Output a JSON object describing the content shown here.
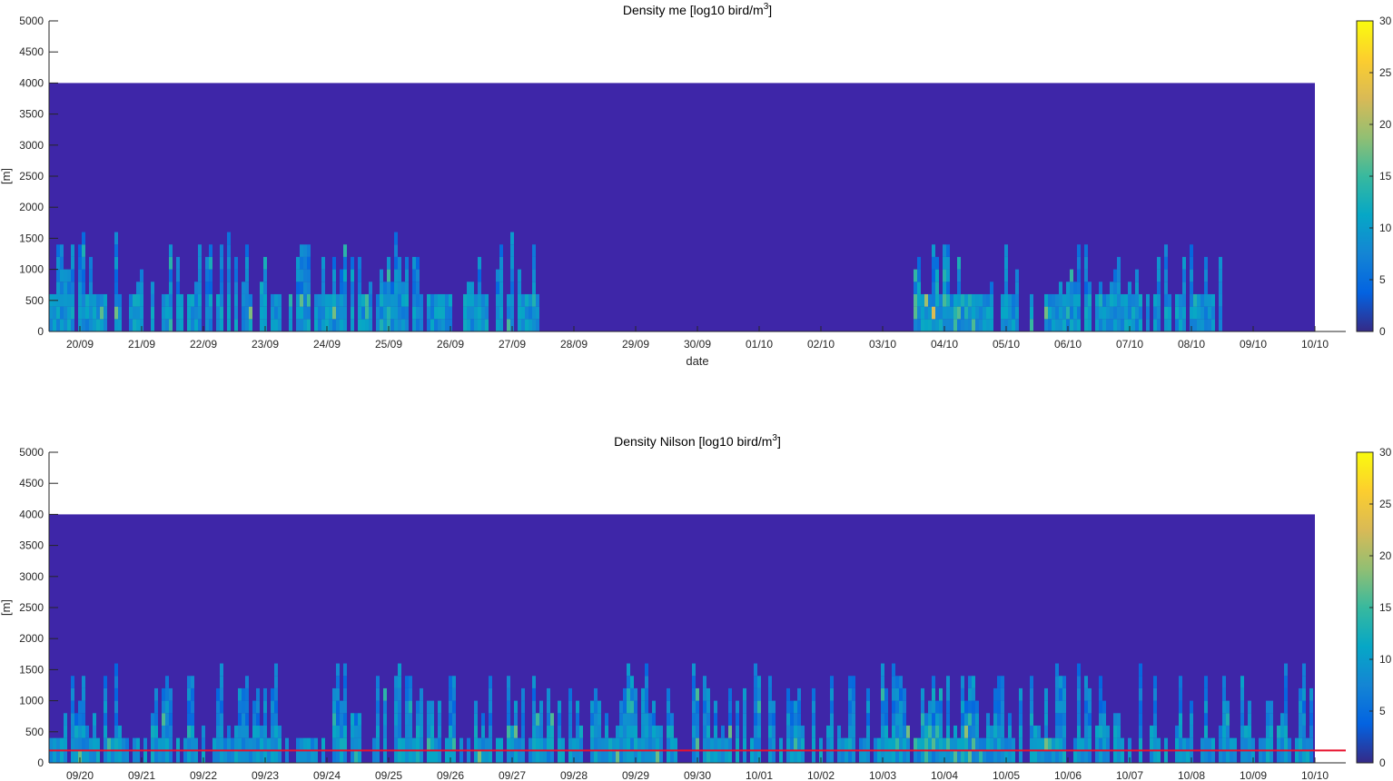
{
  "chart_data": [
    {
      "type": "heatmap",
      "title_main": "Density me [log10 bird/m",
      "title_sup": "3",
      "title_end": "]",
      "xlabel": "date",
      "ylabel": "[m]",
      "ylim": [
        0,
        5000
      ],
      "yticks": [
        "0",
        "500",
        "1000",
        "1500",
        "2000",
        "2500",
        "3000",
        "3500",
        "4000",
        "4500",
        "5000"
      ],
      "xticks": [
        "20/09",
        "21/09",
        "22/09",
        "23/09",
        "24/09",
        "25/09",
        "26/09",
        "27/09",
        "28/09",
        "29/09",
        "30/09",
        "01/10",
        "02/10",
        "03/10",
        "04/10",
        "05/10",
        "06/10",
        "07/10",
        "08/10",
        "09/10",
        "10/10"
      ],
      "data_height_top": 4000,
      "colorbar_ticks": [
        "0",
        "5",
        "10",
        "15",
        "20",
        "25",
        "30"
      ],
      "clim": [
        0,
        30
      ],
      "active_days": [
        0,
        1,
        2,
        3,
        4,
        5,
        6,
        7,
        14,
        15,
        16,
        17,
        18
      ],
      "event_day_index": 14,
      "threshold_line": null
    },
    {
      "type": "heatmap",
      "title_main": "Density Nilson [log10 bird/m",
      "title_sup": "3",
      "title_end": "]",
      "xlabel": "",
      "ylabel": "[m]",
      "ylim": [
        0,
        5000
      ],
      "yticks": [
        "0",
        "500",
        "1000",
        "1500",
        "2000",
        "2500",
        "3000",
        "3500",
        "4000",
        "4500",
        "5000"
      ],
      "xticks": [
        "09/20",
        "09/21",
        "09/22",
        "09/23",
        "09/24",
        "09/25",
        "09/26",
        "09/27",
        "09/28",
        "09/29",
        "09/30",
        "10/01",
        "10/02",
        "10/03",
        "10/04",
        "10/05",
        "10/06",
        "10/07",
        "10/08",
        "10/09",
        "10/10"
      ],
      "data_height_top": 4000,
      "colorbar_ticks": [
        "0",
        "5",
        "10",
        "15",
        "20",
        "25",
        "30"
      ],
      "clim": [
        0,
        30
      ],
      "active_days": [
        0,
        1,
        2,
        3,
        4,
        5,
        6,
        7,
        8,
        9,
        10,
        11,
        12,
        13,
        14,
        15,
        16,
        17,
        18,
        19,
        20
      ],
      "event_day_index": 14,
      "threshold_line": 200,
      "threshold_color": "#e8112d"
    }
  ],
  "colors": {
    "background_cell": "#3e26a8",
    "axis": "#262626"
  }
}
